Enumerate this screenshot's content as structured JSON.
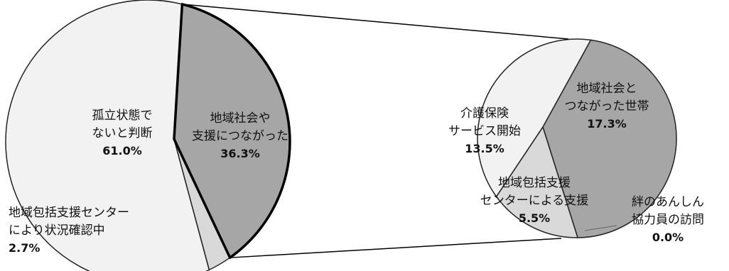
{
  "chart_data": [
    {
      "type": "pie",
      "slices": [
        {
          "label_lines": [
            "孤立状態で",
            "ないと判断"
          ],
          "value_text": "61.0%",
          "value": 61.0,
          "color": "#f2f2f2"
        },
        {
          "label_lines": [
            "地域社会や",
            "支援につながった"
          ],
          "value_text": "36.3%",
          "value": 36.3,
          "color": "#a6a6a6"
        },
        {
          "label_lines": [
            "地域包括支援センター",
            "により状況確認中"
          ],
          "value_text": "2.7%",
          "value": 2.7,
          "color": "#d9d9d9"
        }
      ]
    },
    {
      "type": "pie",
      "slices": [
        {
          "label_lines": [
            "地域社会と",
            "つながった世帯"
          ],
          "value_text": "17.3%",
          "value": 17.3,
          "color": "#a6a6a6"
        },
        {
          "label_lines": [
            "絆のあんしん",
            "協力員の訪問"
          ],
          "value_text": "0.0%",
          "value": 0.0,
          "color": "#a6a6a6"
        },
        {
          "label_lines": [
            "地域包括支援",
            "センターによる支援"
          ],
          "value_text": "5.5%",
          "value": 5.5,
          "color": "#d9d9d9"
        },
        {
          "label_lines": [
            "介護保険",
            "サービス開始"
          ],
          "value_text": "13.5%",
          "value": 13.5,
          "color": "#f2f2f2"
        }
      ]
    }
  ]
}
